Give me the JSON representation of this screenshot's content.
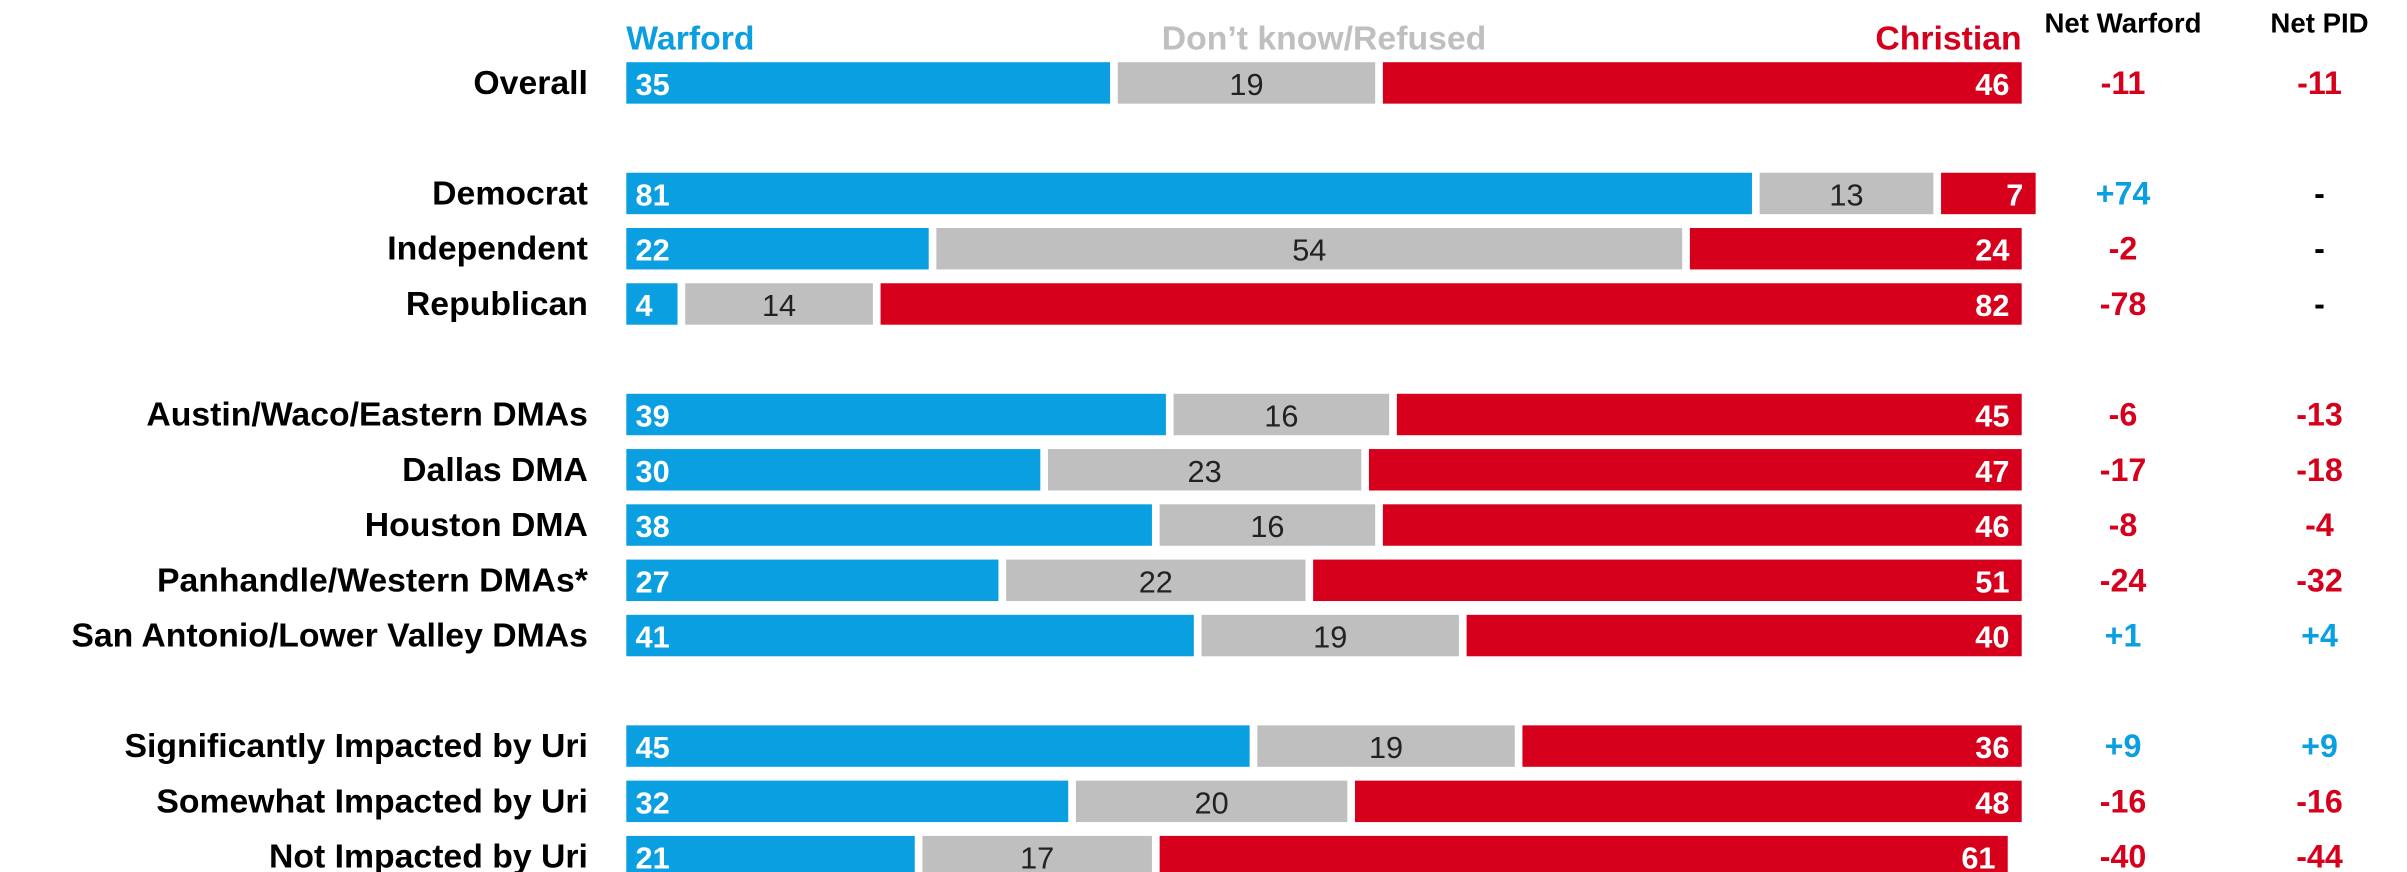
{
  "chart_data": {
    "type": "stacked-bar-horizontal",
    "categories": [
      "Overall",
      "Democrat",
      "Independent",
      "Republican",
      "Austin/Waco/Eastern DMAs",
      "Dallas DMA",
      "Houston DMA",
      "Panhandle/Western DMAs*",
      "San Antonio/Lower Valley DMAs",
      "Significantly Impacted by Uri",
      "Somewhat Impacted by Uri",
      "Not Impacted by Uri"
    ],
    "series": [
      {
        "name": "Warford",
        "color": "#0a9fe0",
        "values": [
          35,
          81,
          22,
          4,
          39,
          30,
          38,
          27,
          41,
          45,
          32,
          21
        ]
      },
      {
        "name": "Don’t know/Refused",
        "color": "#bfbfbf",
        "values": [
          19,
          13,
          54,
          14,
          16,
          23,
          16,
          22,
          19,
          19,
          20,
          17
        ]
      },
      {
        "name": "Christian",
        "color": "#d6001c",
        "values": [
          46,
          7,
          24,
          82,
          45,
          47,
          46,
          51,
          40,
          36,
          48,
          61
        ]
      }
    ],
    "xlim": [
      0,
      100
    ],
    "columns": [
      {
        "name": "Net Warford",
        "values": [
          -11,
          74,
          -2,
          -78,
          -6,
          -17,
          -8,
          -24,
          1,
          9,
          -16,
          -40
        ],
        "value_labels": [
          "-11",
          "+74",
          "-2",
          "-78",
          "-6",
          "-17",
          "-8",
          "-24",
          "+1",
          "+9",
          "-16",
          "-40"
        ]
      },
      {
        "name": "Net PID",
        "values": [
          -11,
          null,
          null,
          null,
          -13,
          -18,
          -4,
          -32,
          4,
          9,
          -16,
          -44
        ],
        "value_labels": [
          "-11",
          "-",
          "-",
          "-",
          "-13",
          "-18",
          "-4",
          "-32",
          "+4",
          "+9",
          "-16",
          "-44"
        ]
      }
    ]
  }
}
